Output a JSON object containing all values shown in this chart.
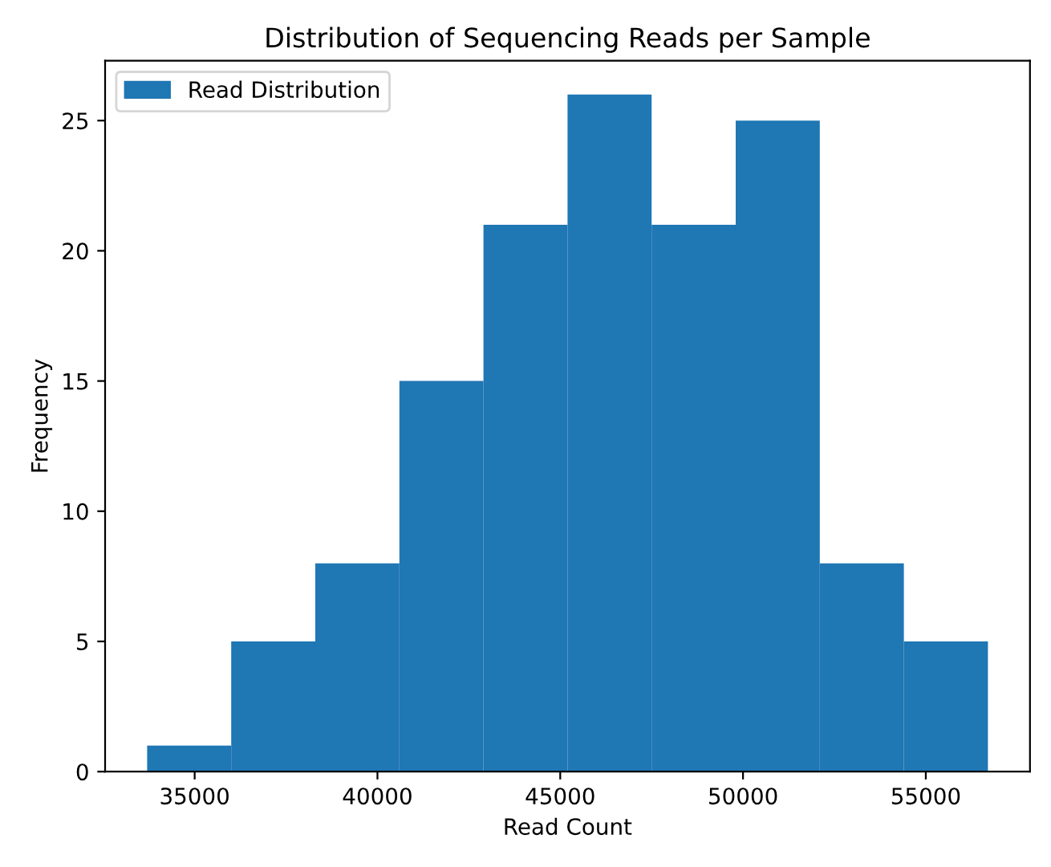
{
  "chart_data": {
    "type": "histogram",
    "title": "Distribution of Sequencing Reads per Sample",
    "xlabel": "Read Count",
    "ylabel": "Frequency",
    "bins": [
      33700,
      36000,
      38300,
      40600,
      42900,
      45200,
      47500,
      49800,
      52100,
      54400,
      56700
    ],
    "series": [
      {
        "name": "Read Distribution",
        "color": "#1f77b4",
        "values": [
          1,
          5,
          8,
          15,
          21,
          26,
          21,
          25,
          8,
          5
        ]
      }
    ],
    "xlim": [
      32550,
      57850
    ],
    "ylim": [
      0,
      27.3
    ],
    "xticks": [
      35000,
      40000,
      45000,
      50000,
      55000
    ],
    "yticks": [
      0,
      5,
      10,
      15,
      20,
      25
    ],
    "legend": "top left",
    "grid": false
  }
}
